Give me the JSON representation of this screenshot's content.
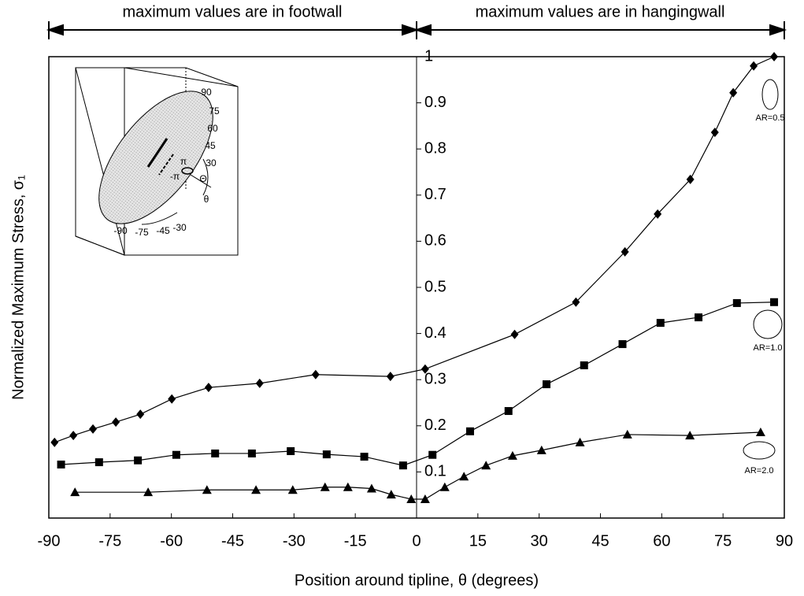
{
  "chart_data": {
    "type": "line",
    "annotations": [
      "maximum values are in footwall",
      "maximum values are in hangingwall"
    ],
    "x_label": "Position around tipline, θ (degrees)",
    "y_label": "Normalized Maximum Stress, σ₁",
    "xlim": [
      -90,
      90
    ],
    "xticks": [
      -90,
      -75,
      -60,
      -45,
      -30,
      -15,
      0,
      15,
      30,
      45,
      60,
      75,
      90
    ],
    "ylim": [
      0,
      1
    ],
    "yticks": [
      0.1,
      0.2,
      0.3,
      0.4,
      0.5,
      0.6,
      0.7,
      0.8,
      0.9,
      1
    ],
    "color": "#000000",
    "series": [
      {
        "name": "AR=0.5",
        "marker": "diamond",
        "x": [
          -88.6,
          -84,
          -79.2,
          -73.6,
          -67.6,
          -59.9,
          -50.9,
          -38.4,
          -24.7,
          -6.4,
          2.1,
          24,
          39,
          51,
          59,
          67,
          73,
          77.5,
          82.5,
          87.5
        ],
        "values": [
          0.164,
          0.179,
          0.193,
          0.208,
          0.225,
          0.258,
          0.283,
          0.292,
          0.311,
          0.307,
          0.323,
          0.398,
          0.468,
          0.577,
          0.659,
          0.734,
          0.836,
          0.922,
          0.98,
          1.0
        ]
      },
      {
        "name": "AR=1.0",
        "marker": "square",
        "x": [
          -87,
          -77.7,
          -68.2,
          -58.8,
          -49.3,
          -40.3,
          -30.8,
          -22,
          -12.8,
          -3.3,
          3.9,
          13.1,
          22.5,
          31.8,
          41,
          50.4,
          59.7,
          69,
          78.4,
          87.5
        ],
        "values": [
          0.116,
          0.121,
          0.125,
          0.137,
          0.14,
          0.14,
          0.145,
          0.138,
          0.133,
          0.114,
          0.137,
          0.188,
          0.232,
          0.29,
          0.331,
          0.377,
          0.423,
          0.435,
          0.466,
          0.468
        ]
      },
      {
        "name": "AR=2.0",
        "marker": "triangle",
        "x": [
          -83.6,
          -65.7,
          -51.3,
          -39.3,
          -30.3,
          -22.4,
          -16.8,
          -11,
          -6.2,
          -1.3,
          2.1,
          6.9,
          11.6,
          17,
          23.5,
          30.6,
          40,
          51.6,
          66.9,
          84.2
        ],
        "values": [
          0.056,
          0.056,
          0.061,
          0.061,
          0.061,
          0.067,
          0.067,
          0.064,
          0.051,
          0.041,
          0.041,
          0.067,
          0.09,
          0.114,
          0.135,
          0.147,
          0.164,
          0.181,
          0.179,
          0.186
        ]
      }
    ],
    "inset_labels": [
      "90",
      "75",
      "60",
      "45",
      "30",
      "π",
      "-π",
      "Θ",
      "θ",
      "-90",
      "-75",
      "-45",
      "-30"
    ]
  }
}
